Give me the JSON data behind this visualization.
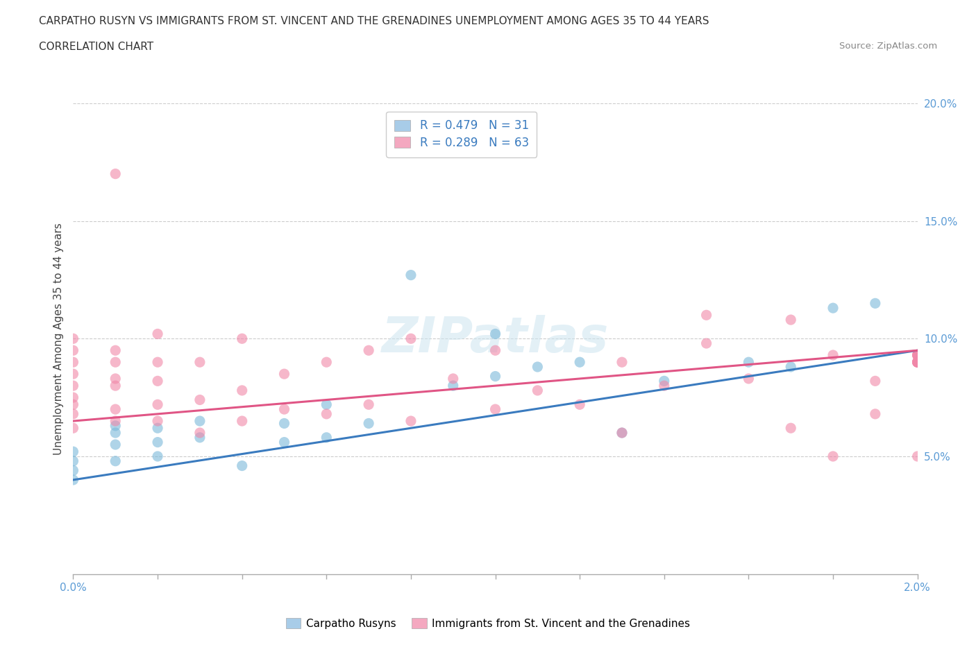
{
  "title_line1": "CARPATHO RUSYN VS IMMIGRANTS FROM ST. VINCENT AND THE GRENADINES UNEMPLOYMENT AMONG AGES 35 TO 44 YEARS",
  "title_line2": "CORRELATION CHART",
  "source": "Source: ZipAtlas.com",
  "ylabel": "Unemployment Among Ages 35 to 44 years",
  "x_min": 0.0,
  "x_max": 0.02,
  "y_min": 0.0,
  "y_max": 0.2,
  "carpatho_color": "#7ab8d9",
  "immigrants_color": "#f087a8",
  "carpatho_line_color": "#3a7bbf",
  "immigrants_line_color": "#e05585",
  "legend_blue_color": "#a8cce8",
  "legend_pink_color": "#f4a8c0",
  "watermark": "ZIPatlas",
  "blue_scatter_x": [
    0.0,
    0.0,
    0.0,
    0.0,
    0.001,
    0.001,
    0.001,
    0.001,
    0.002,
    0.002,
    0.002,
    0.003,
    0.003,
    0.004,
    0.005,
    0.005,
    0.006,
    0.006,
    0.007,
    0.008,
    0.009,
    0.01,
    0.01,
    0.011,
    0.012,
    0.013,
    0.014,
    0.016,
    0.017,
    0.018,
    0.019
  ],
  "blue_scatter_y": [
    0.04,
    0.044,
    0.048,
    0.052,
    0.048,
    0.055,
    0.06,
    0.063,
    0.05,
    0.056,
    0.062,
    0.058,
    0.065,
    0.046,
    0.056,
    0.064,
    0.058,
    0.072,
    0.064,
    0.127,
    0.08,
    0.102,
    0.084,
    0.088,
    0.09,
    0.06,
    0.082,
    0.09,
    0.088,
    0.113,
    0.115
  ],
  "pink_scatter_x": [
    0.0,
    0.0,
    0.0,
    0.0,
    0.0,
    0.0,
    0.0,
    0.0,
    0.0,
    0.001,
    0.001,
    0.001,
    0.001,
    0.001,
    0.001,
    0.001,
    0.002,
    0.002,
    0.002,
    0.002,
    0.002,
    0.003,
    0.003,
    0.003,
    0.004,
    0.004,
    0.004,
    0.005,
    0.005,
    0.006,
    0.006,
    0.007,
    0.007,
    0.008,
    0.008,
    0.009,
    0.01,
    0.01,
    0.011,
    0.012,
    0.013,
    0.013,
    0.014,
    0.015,
    0.015,
    0.016,
    0.017,
    0.017,
    0.018,
    0.018,
    0.019,
    0.019,
    0.02,
    0.02,
    0.02,
    0.02,
    0.02,
    0.02,
    0.02,
    0.02,
    0.02,
    0.02,
    0.02
  ],
  "pink_scatter_y": [
    0.062,
    0.068,
    0.072,
    0.075,
    0.08,
    0.085,
    0.09,
    0.095,
    0.1,
    0.065,
    0.07,
    0.08,
    0.083,
    0.09,
    0.095,
    0.17,
    0.065,
    0.072,
    0.082,
    0.09,
    0.102,
    0.06,
    0.074,
    0.09,
    0.065,
    0.078,
    0.1,
    0.07,
    0.085,
    0.068,
    0.09,
    0.072,
    0.095,
    0.065,
    0.1,
    0.083,
    0.07,
    0.095,
    0.078,
    0.072,
    0.06,
    0.09,
    0.08,
    0.098,
    0.11,
    0.083,
    0.108,
    0.062,
    0.05,
    0.093,
    0.068,
    0.082,
    0.09,
    0.093,
    0.093,
    0.093,
    0.09,
    0.09,
    0.09,
    0.09,
    0.05,
    0.093,
    0.09
  ]
}
